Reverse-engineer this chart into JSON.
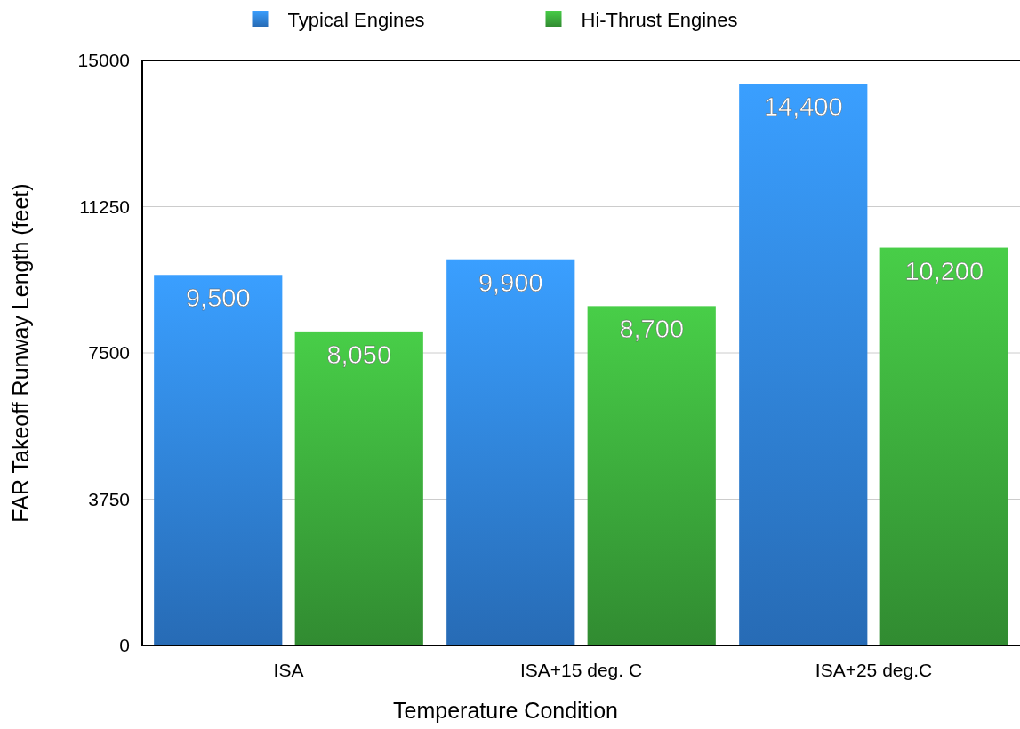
{
  "chart_data": {
    "type": "bar",
    "xlabel": "Temperature Condition",
    "ylabel": "FAR Takeoff Runway Length (feet)",
    "categories": [
      "ISA",
      "ISA+15 deg. C",
      "ISA+25 deg.C"
    ],
    "series": [
      {
        "name": "Typical Engines",
        "color": "#2f80d8",
        "values": [
          9500,
          9900,
          14400
        ],
        "value_labels": [
          "9,500",
          "9,900",
          "14,400"
        ]
      },
      {
        "name": "Hi-Thrust Engines",
        "color": "#3aa63a",
        "values": [
          8050,
          8700,
          10200
        ],
        "value_labels": [
          "8,050",
          "8,700",
          "10,200"
        ]
      }
    ],
    "ylim": [
      0,
      15000
    ],
    "yticks": [
      0,
      3750,
      7500,
      11250,
      15000
    ],
    "grid": "y",
    "legend": "top"
  }
}
